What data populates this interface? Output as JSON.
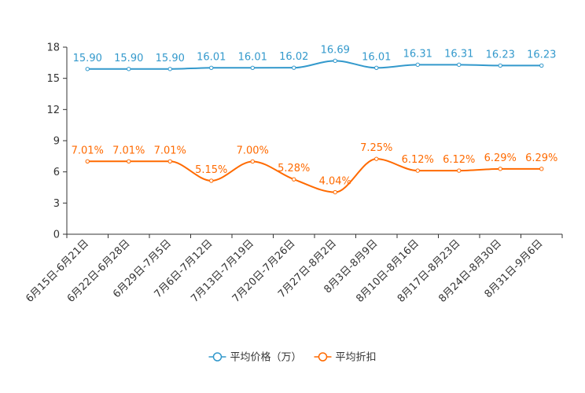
{
  "chart_data": {
    "type": "line",
    "title": "",
    "xlabel": "",
    "ylabel": "",
    "ylim": [
      0,
      18
    ],
    "yticks": [
      0,
      3,
      6,
      9,
      12,
      15,
      18
    ],
    "grid": false,
    "legend_position": "bottom-center",
    "categories": [
      "6月15日-6月21日",
      "6月22日-6月28日",
      "6月29日-7月5日",
      "7月6日-7月12日",
      "7月13日-7月19日",
      "7月20日-7月26日",
      "7月27日-8月2日",
      "8月3日-8月9日",
      "8月10日-8月16日",
      "8月17日-8月23日",
      "8月24日-8月30日",
      "8月31日-9月6日"
    ],
    "series": [
      {
        "name": "平均价格（万）",
        "color": "#3399cc",
        "values": [
          15.9,
          15.9,
          15.9,
          16.01,
          16.01,
          16.02,
          16.69,
          16.01,
          16.31,
          16.31,
          16.23,
          16.23
        ],
        "labels": [
          "15.90",
          "15.90",
          "15.90",
          "16.01",
          "16.01",
          "16.02",
          "16.69",
          "16.01",
          "16.31",
          "16.31",
          "16.23",
          "16.23"
        ]
      },
      {
        "name": "平均折扣",
        "color": "#ff6a00",
        "values": [
          7.01,
          7.01,
          7.01,
          5.15,
          7.0,
          5.28,
          4.04,
          7.25,
          6.12,
          6.12,
          6.29,
          6.29
        ],
        "labels": [
          "7.01%",
          "7.01%",
          "7.01%",
          "5.15%",
          "7.00%",
          "5.28%",
          "4.04%",
          "7.25%",
          "6.12%",
          "6.12%",
          "6.29%",
          "6.29%"
        ]
      }
    ]
  }
}
